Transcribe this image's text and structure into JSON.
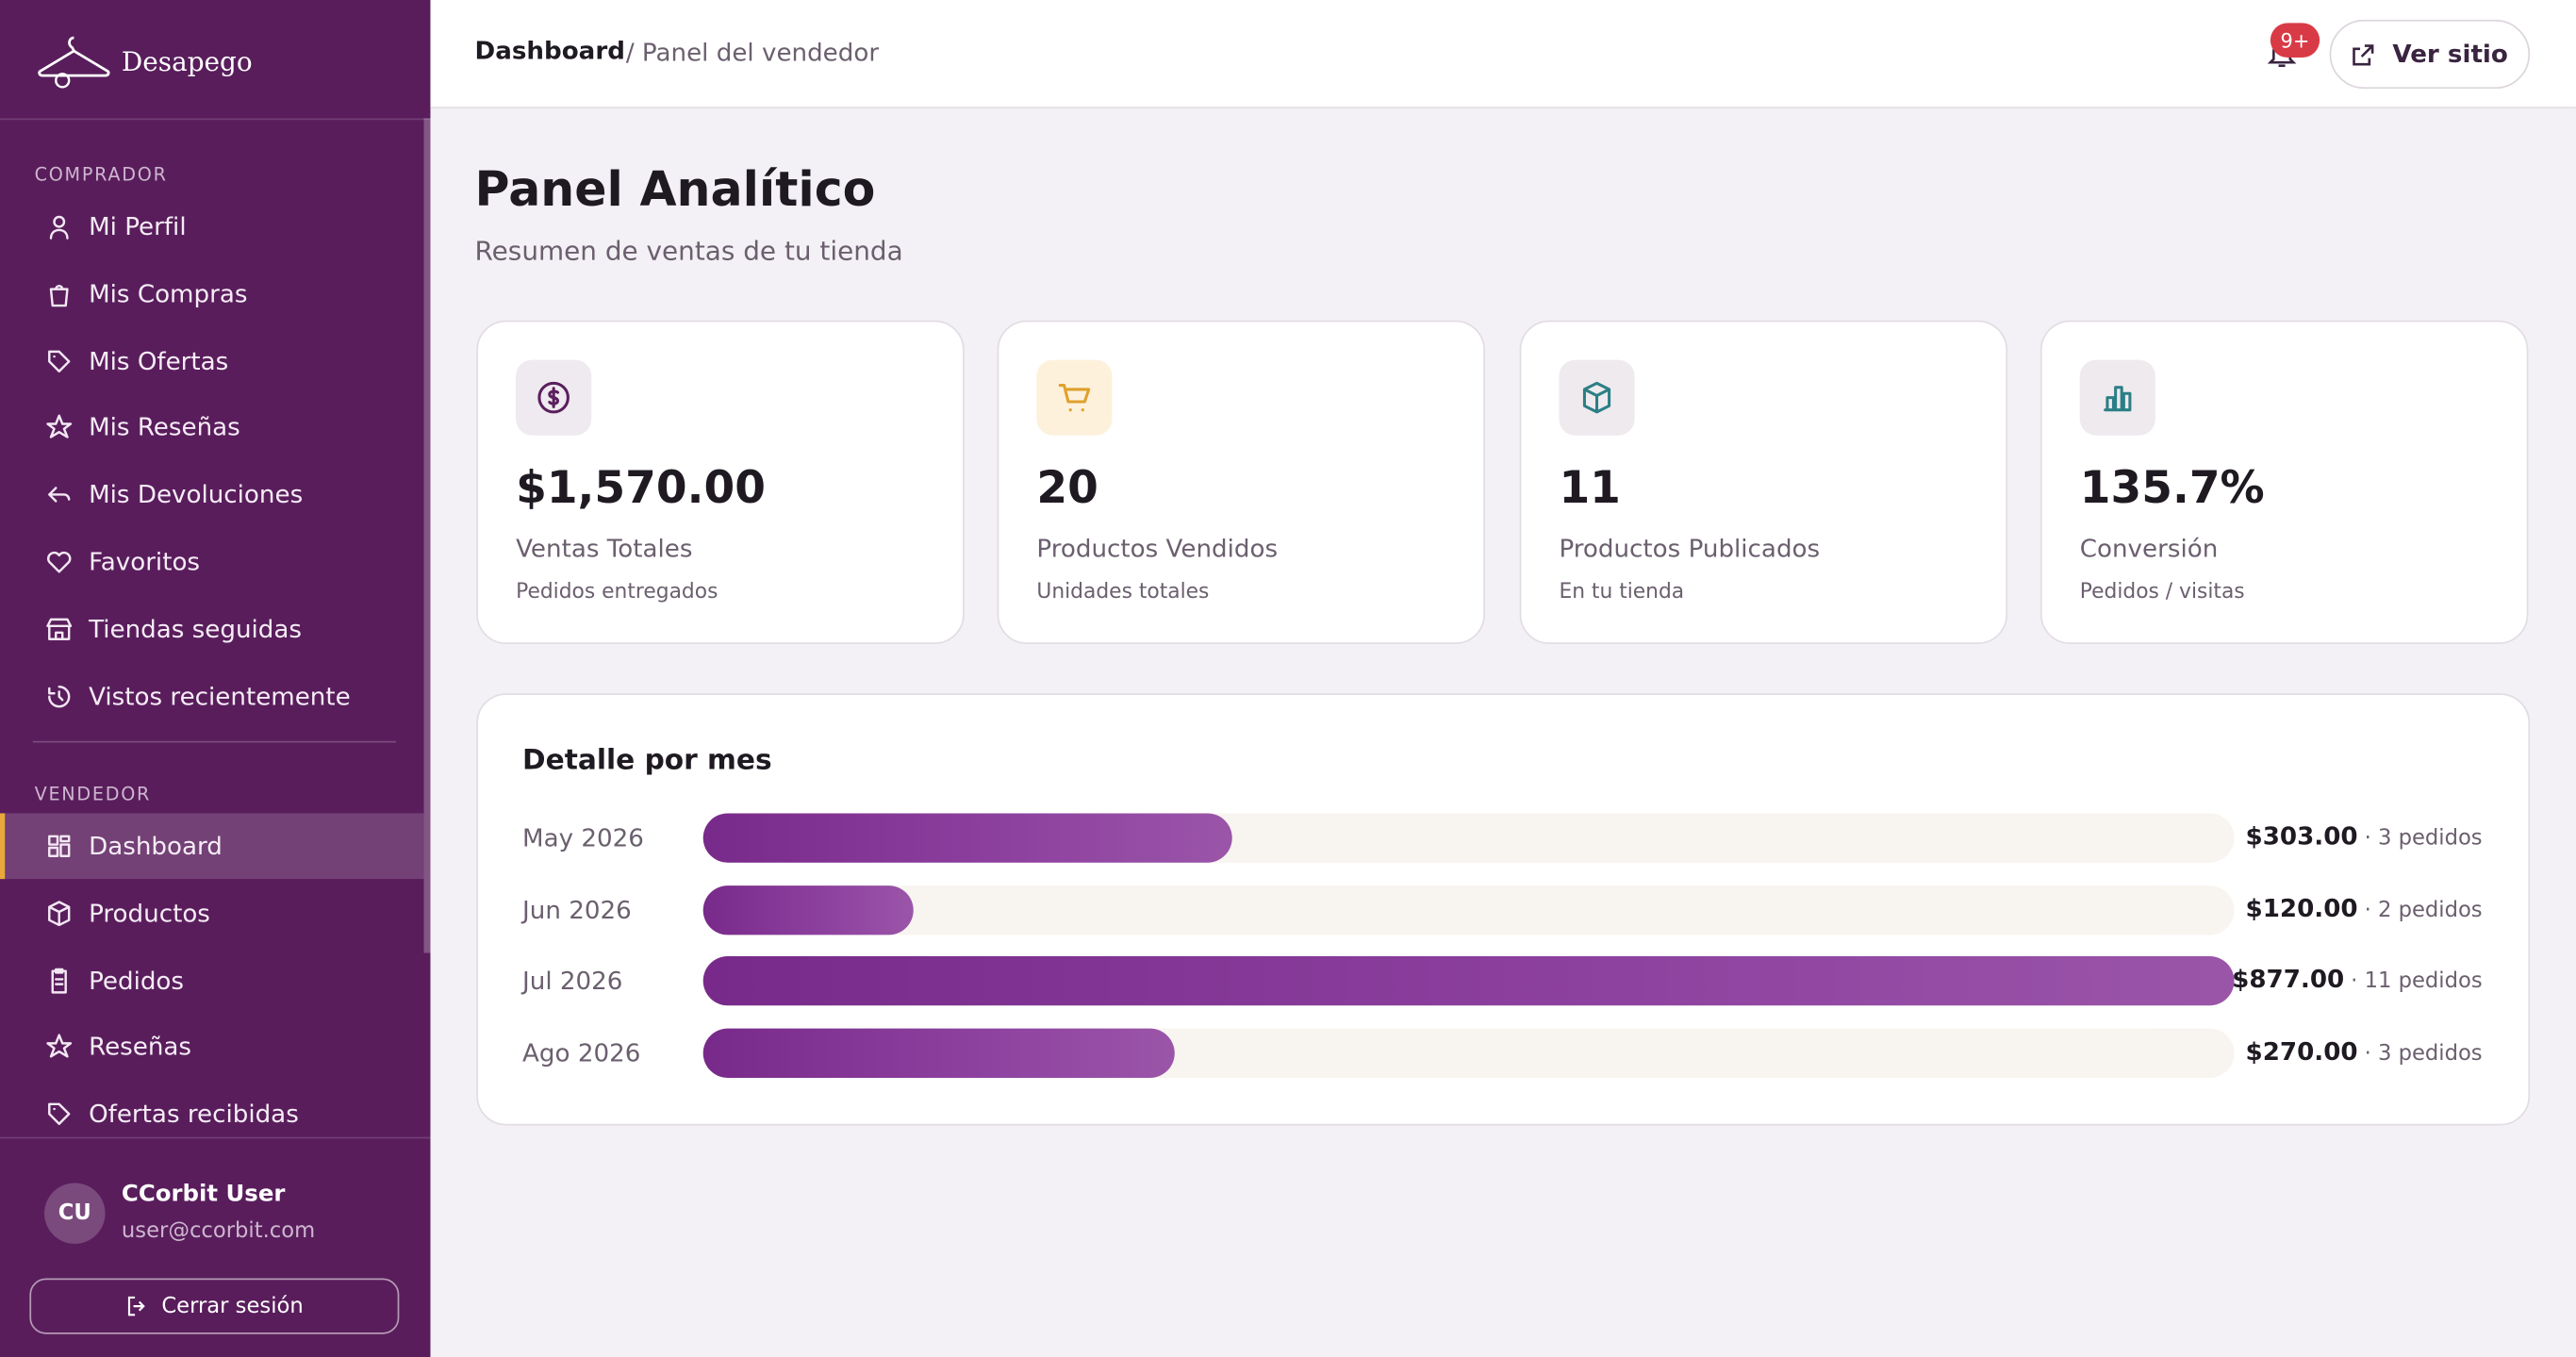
{
  "brand": "Desapego",
  "sidebar": {
    "sections": [
      {
        "label": "COMPRADOR",
        "items": [
          "Mi Perfil",
          "Mis Compras",
          "Mis Ofertas",
          "Mis Reseñas",
          "Mis Devoluciones",
          "Favoritos",
          "Tiendas seguidas",
          "Vistos recientemente"
        ]
      },
      {
        "label": "VENDEDOR",
        "items": [
          "Dashboard",
          "Productos",
          "Pedidos",
          "Reseñas",
          "Ofertas recibidas"
        ]
      }
    ],
    "active": [
      1,
      0
    ],
    "user": {
      "initials": "CU",
      "name": "CCorbit User",
      "email": "user@ccorbit.com"
    },
    "logout": "Cerrar sesión"
  },
  "topbar": {
    "breadcrumb": [
      "Dashboard",
      "/ Panel del vendedor"
    ],
    "badge": "9+",
    "button": "Ver sitio"
  },
  "page": {
    "title": "Panel Analítico",
    "subtitle": "Resumen de ventas de tu tienda"
  },
  "cards": [
    {
      "value": "$1,570.00",
      "label": "Ventas Totales",
      "note": "Pedidos entregados"
    },
    {
      "value": "20",
      "label": "Productos Vendidos",
      "note": "Unidades totales"
    },
    {
      "value": "11",
      "label": "Productos Publicados",
      "note": "En tu tienda"
    },
    {
      "value": "135.7%",
      "label": "Conversión",
      "note": "Pedidos / visitas"
    }
  ],
  "monthly": {
    "title": "Detalle por mes",
    "categories": [
      "May 2026",
      "Jun 2026",
      "Jul 2026",
      "Ago 2026"
    ],
    "values": [
      303,
      120,
      877,
      270
    ],
    "value_labels": [
      "$303.00",
      "$120.00",
      "$877.00",
      "$270.00"
    ],
    "orders": [
      "· 3 pedidos",
      "· 2 pedidos",
      "· 11 pedidos",
      "· 3 pedidos"
    ]
  }
}
